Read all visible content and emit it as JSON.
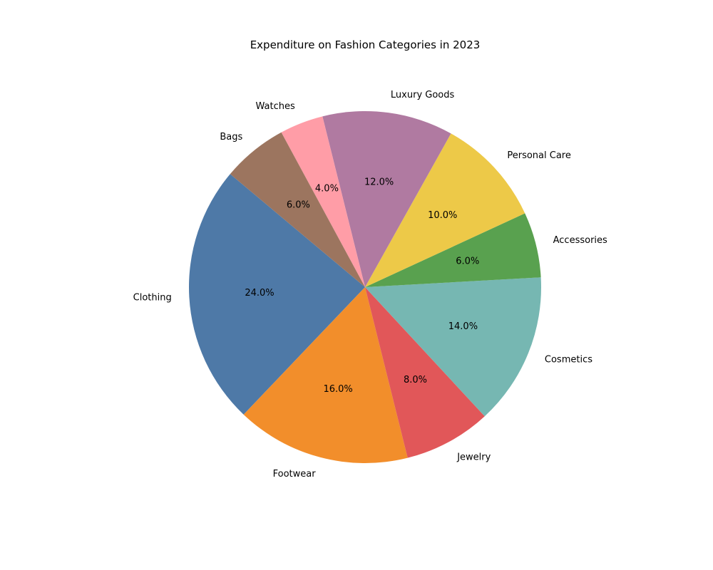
{
  "chart_data": {
    "type": "pie",
    "title": "Expenditure on Fashion Categories in 2023",
    "categories": [
      "Clothing",
      "Footwear",
      "Jewelry",
      "Cosmetics",
      "Accessories",
      "Personal Care",
      "Luxury Goods",
      "Watches",
      "Bags"
    ],
    "values": [
      24.0,
      16.0,
      8.0,
      14.0,
      6.0,
      10.0,
      12.0,
      4.0,
      6.0
    ],
    "percent_labels": [
      "24.0%",
      "16.0%",
      "8.0%",
      "14.0%",
      "6.0%",
      "10.0%",
      "12.0%",
      "4.0%",
      "6.0%"
    ],
    "colors": [
      "#4e79a7",
      "#f28e2b",
      "#e15759",
      "#76b7b2",
      "#59a14f",
      "#edc948",
      "#b07aa1",
      "#ff9da7",
      "#9c755f"
    ],
    "start_angle_deg": 140,
    "direction": "counterclockwise",
    "legend": "none"
  }
}
